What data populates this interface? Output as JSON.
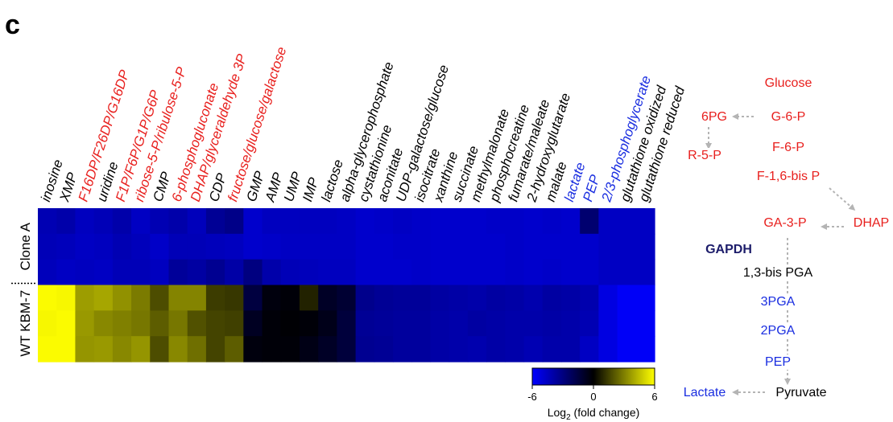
{
  "panel_letter": "c",
  "colors": {
    "red": "#e8201e",
    "blue": "#1a2ee0",
    "black": "#000000",
    "navy": "#1c1c6a",
    "arrow": "#b4b4b4",
    "cmap_low": "#0000ff",
    "cmap_mid": "#000000",
    "cmap_high": "#ffff00"
  },
  "chart_data": {
    "type": "heatmap",
    "columns": [
      {
        "label": "inosine",
        "color": "black"
      },
      {
        "label": "XMP",
        "color": "black"
      },
      {
        "label": "F16DP/F26DP/G16DP",
        "color": "red"
      },
      {
        "label": "uridine",
        "color": "black"
      },
      {
        "label": "F1P/F6P/G1P/G6P",
        "color": "red"
      },
      {
        "label": "ribose-5-P/ribulose-5-P",
        "color": "red"
      },
      {
        "label": "CMP",
        "color": "black"
      },
      {
        "label": "6-phosphogluconate",
        "color": "red"
      },
      {
        "label": "DHAP/glyceraldehyde 3P",
        "color": "red"
      },
      {
        "label": "CDP",
        "color": "black"
      },
      {
        "label": "fructose/glucose/galactose",
        "color": "red"
      },
      {
        "label": "GMP",
        "color": "black"
      },
      {
        "label": "AMP",
        "color": "black"
      },
      {
        "label": "UMP",
        "color": "black"
      },
      {
        "label": "IMP",
        "color": "black"
      },
      {
        "label": "lactose",
        "color": "black"
      },
      {
        "label": "alpha-glycerophosphate",
        "color": "black"
      },
      {
        "label": "cystathionine",
        "color": "black"
      },
      {
        "label": "aconitate",
        "color": "black"
      },
      {
        "label": "UDP-galactose/glucose",
        "color": "black"
      },
      {
        "label": "isocitrate",
        "color": "black"
      },
      {
        "label": "xanthine",
        "color": "black"
      },
      {
        "label": "succinate",
        "color": "black"
      },
      {
        "label": "methylmalonate",
        "color": "black"
      },
      {
        "label": "phosphocreatine",
        "color": "black"
      },
      {
        "label": "fumarate/maleate",
        "color": "black"
      },
      {
        "label": "2-hydroxyglutarate",
        "color": "black"
      },
      {
        "label": "malate",
        "color": "black"
      },
      {
        "label": "lactate",
        "color": "blue"
      },
      {
        "label": "PEP",
        "color": "blue"
      },
      {
        "label": "2/3-phosphoglycerate",
        "color": "blue"
      },
      {
        "label": "glutathione oxidized",
        "color": "black"
      },
      {
        "label": "glutathione reduced",
        "color": "black"
      }
    ],
    "row_groups": [
      {
        "label": "Clone A",
        "rows": 3
      },
      {
        "label": "WT KBM-7",
        "rows": 3
      }
    ],
    "values": [
      [
        -4.2,
        -4.0,
        -4.5,
        -4.3,
        -4.0,
        -4.6,
        -4.2,
        -4.0,
        -4.4,
        -3.5,
        -3.2,
        -4.8,
        -4.5,
        -4.5,
        -4.5,
        -4.5,
        -4.6,
        -4.8,
        -4.7,
        -4.6,
        -4.7,
        -4.8,
        -4.8,
        -4.8,
        -4.7,
        -4.7,
        -4.8,
        -4.7,
        -4.8,
        -2.6,
        -4.6,
        -4.6,
        -4.6
      ],
      [
        -4.3,
        -4.4,
        -4.6,
        -4.5,
        -4.2,
        -4.4,
        -4.7,
        -4.3,
        -4.3,
        -4.4,
        -4.5,
        -4.8,
        -4.7,
        -4.6,
        -4.6,
        -4.6,
        -4.6,
        -4.8,
        -4.8,
        -4.7,
        -4.7,
        -4.8,
        -4.8,
        -4.8,
        -4.8,
        -4.7,
        -4.8,
        -4.8,
        -4.8,
        -4.8,
        -4.6,
        -4.6,
        -4.6
      ],
      [
        -4.4,
        -4.6,
        -4.5,
        -4.6,
        -4.3,
        -4.3,
        -4.5,
        -3.6,
        -3.8,
        -3.4,
        -3.9,
        -3.0,
        -4.0,
        -4.3,
        -4.4,
        -4.5,
        -4.5,
        -4.8,
        -4.8,
        -4.8,
        -4.7,
        -4.8,
        -4.8,
        -4.8,
        -4.8,
        -4.7,
        -4.8,
        -4.7,
        -4.8,
        -4.8,
        -4.6,
        -4.6,
        -4.6
      ],
      [
        5.9,
        5.8,
        3.7,
        3.9,
        3.4,
        2.9,
        1.8,
        3.1,
        3.1,
        1.4,
        1.3,
        -1.5,
        -0.3,
        -0.2,
        0.8,
        -0.9,
        -1.2,
        -3.3,
        -3.5,
        -3.6,
        -3.6,
        -3.8,
        -3.9,
        -4.0,
        -3.8,
        -3.9,
        -4.1,
        -3.8,
        -3.9,
        -4.1,
        -5.3,
        -5.8,
        -5.8
      ],
      [
        5.8,
        5.9,
        3.6,
        3.2,
        3.0,
        2.8,
        2.2,
        2.8,
        1.9,
        1.6,
        1.5,
        -0.8,
        -0.2,
        -0.1,
        -0.2,
        -0.6,
        -1.4,
        -3.5,
        -3.6,
        -3.7,
        -3.7,
        -3.9,
        -4.0,
        -3.8,
        -3.9,
        -4.0,
        -4.0,
        -3.9,
        -4.0,
        -4.2,
        -5.3,
        -5.8,
        -5.8
      ],
      [
        5.9,
        5.9,
        3.5,
        3.6,
        3.2,
        3.5,
        1.8,
        3.2,
        2.6,
        1.6,
        2.2,
        -0.3,
        -0.2,
        -0.2,
        -0.5,
        -0.9,
        -1.4,
        -3.4,
        -3.5,
        -3.7,
        -3.7,
        -3.9,
        -4.0,
        -4.1,
        -3.9,
        -4.0,
        -4.2,
        -4.0,
        -4.0,
        -4.6,
        -5.3,
        -5.8,
        -5.8
      ]
    ],
    "colorbar": {
      "range": [
        -6,
        6
      ],
      "ticks": [
        "-6",
        "0",
        "6"
      ],
      "title_prefix": "Log",
      "title_sub": "2",
      "title_suffix": " (fold change)"
    }
  },
  "pathway": {
    "nodes": [
      {
        "id": "glucose",
        "label": "Glucose",
        "color": "red"
      },
      {
        "id": "g6p",
        "label": "G-6-P",
        "color": "red"
      },
      {
        "id": "sixpg",
        "label": "6PG",
        "color": "red"
      },
      {
        "id": "r5p",
        "label": "R-5-P",
        "color": "red"
      },
      {
        "id": "f6p",
        "label": "F-6-P",
        "color": "red"
      },
      {
        "id": "f16bp",
        "label": "F-1,6-bis P",
        "color": "red"
      },
      {
        "id": "ga3p",
        "label": "GA-3-P",
        "color": "red"
      },
      {
        "id": "dhap",
        "label": "DHAP",
        "color": "red"
      },
      {
        "id": "bpga",
        "label": "1,3-bis PGA",
        "color": "black"
      },
      {
        "id": "pga3",
        "label": "3PGA",
        "color": "blue"
      },
      {
        "id": "pga2",
        "label": "2PGA",
        "color": "blue"
      },
      {
        "id": "pep",
        "label": "PEP",
        "color": "blue"
      },
      {
        "id": "pyruvate",
        "label": "Pyruvate",
        "color": "black"
      },
      {
        "id": "lactate",
        "label": "Lactate",
        "color": "blue"
      }
    ],
    "enzyme": {
      "label": "GAPDH",
      "color": "navy"
    }
  }
}
